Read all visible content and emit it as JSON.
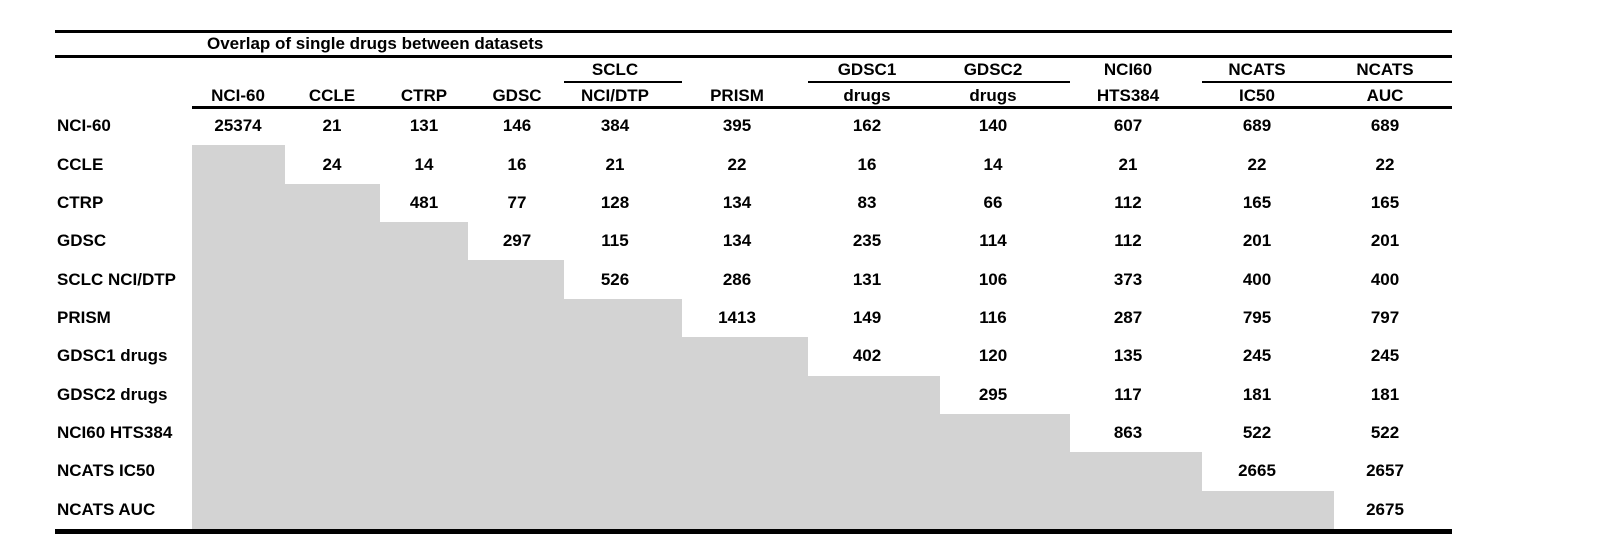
{
  "title": "Overlap of single drugs between datasets",
  "columns": [
    {
      "group": "",
      "label": "NCI-60"
    },
    {
      "group": "",
      "label": "CCLE"
    },
    {
      "group": "",
      "label": "CTRP"
    },
    {
      "group": "",
      "label": "GDSC"
    },
    {
      "group": "SCLC",
      "label": "NCI/DTP"
    },
    {
      "group": "",
      "label": "PRISM"
    },
    {
      "group": "GDSC1",
      "label": "drugs"
    },
    {
      "group": "GDSC2",
      "label": "drugs"
    },
    {
      "group": "NCI60",
      "label": "HTS384"
    },
    {
      "group": "NCATS",
      "label": "IC50"
    },
    {
      "group": "NCATS",
      "label": "AUC"
    }
  ],
  "rows": [
    {
      "label": "NCI-60",
      "values": [
        25374,
        21,
        131,
        146,
        384,
        395,
        162,
        140,
        607,
        689,
        689
      ]
    },
    {
      "label": "CCLE",
      "values": [
        24,
        14,
        16,
        21,
        22,
        16,
        14,
        21,
        22,
        22
      ]
    },
    {
      "label": "CTRP",
      "values": [
        481,
        77,
        128,
        134,
        83,
        66,
        112,
        165,
        165
      ]
    },
    {
      "label": "GDSC",
      "values": [
        297,
        115,
        134,
        235,
        114,
        112,
        201,
        201
      ]
    },
    {
      "label": "SCLC NCI/DTP",
      "values": [
        526,
        286,
        131,
        106,
        373,
        400,
        400
      ]
    },
    {
      "label": "PRISM",
      "values": [
        1413,
        149,
        116,
        287,
        795,
        797
      ]
    },
    {
      "label": "GDSC1 drugs",
      "values": [
        402,
        120,
        135,
        245,
        245
      ]
    },
    {
      "label": "GDSC2 drugs",
      "values": [
        295,
        117,
        181,
        181
      ]
    },
    {
      "label": "NCI60 HTS384",
      "values": [
        863,
        522,
        522
      ]
    },
    {
      "label": "NCATS IC50",
      "values": [
        2665,
        2657
      ]
    },
    {
      "label": "NCATS AUC",
      "values": [
        2675
      ]
    }
  ],
  "colors": {
    "background": "#ffffff",
    "text": "#000000",
    "rules": "#000000",
    "shaded_cell": "#d3d3d3"
  }
}
